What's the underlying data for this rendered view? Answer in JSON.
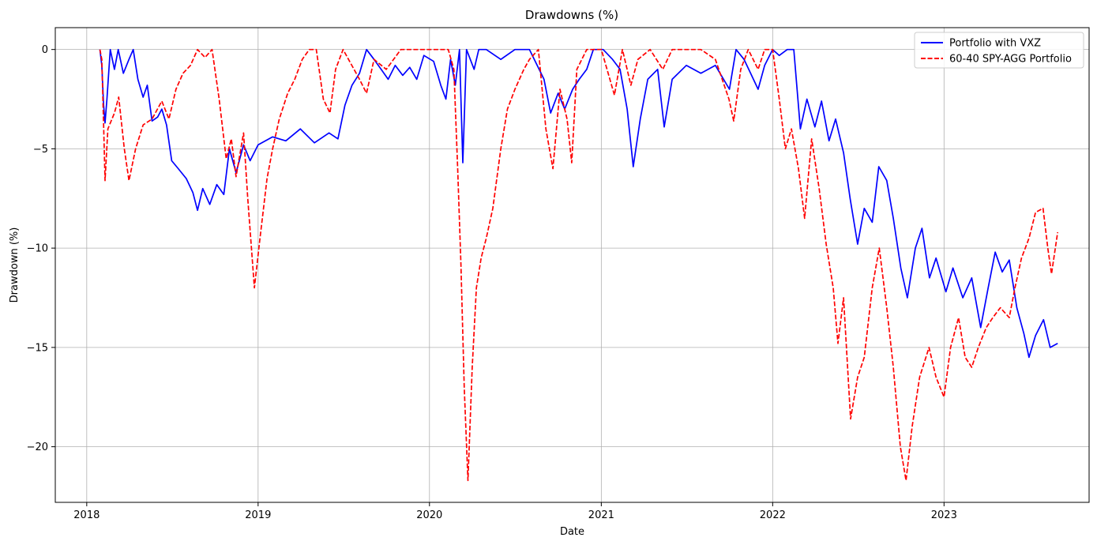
{
  "chart_data": {
    "type": "line",
    "title": "Drawdowns (%)",
    "xlabel": "Date",
    "ylabel": "Drawdown (%)",
    "x_range": [
      "2017-10-26",
      "2023-11-06"
    ],
    "ylim": [
      -22.8,
      1.1
    ],
    "x_ticks": [
      "2018",
      "2019",
      "2020",
      "2021",
      "2022",
      "2023"
    ],
    "y_ticks": [
      0,
      -5,
      -10,
      -15,
      -20
    ],
    "y_tick_labels": [
      "0",
      "−5",
      "−10",
      "−15",
      "−20"
    ],
    "grid": true,
    "legend_position": "top-right",
    "series": [
      {
        "name": "Portfolio with VXZ",
        "color": "#0000ff",
        "style": "solid",
        "points": [
          [
            "2018-01-29",
            0
          ],
          [
            "2018-02-02",
            -0.8
          ],
          [
            "2018-02-06",
            -2.8
          ],
          [
            "2018-02-09",
            -3.7
          ],
          [
            "2018-02-13",
            -2.5
          ],
          [
            "2018-02-20",
            0
          ],
          [
            "2018-03-01",
            -1.0
          ],
          [
            "2018-03-09",
            0
          ],
          [
            "2018-03-20",
            -1.2
          ],
          [
            "2018-04-01",
            -0.5
          ],
          [
            "2018-04-10",
            0
          ],
          [
            "2018-04-20",
            -1.5
          ],
          [
            "2018-05-01",
            -2.4
          ],
          [
            "2018-05-10",
            -1.8
          ],
          [
            "2018-05-20",
            -3.6
          ],
          [
            "2018-06-01",
            -3.4
          ],
          [
            "2018-06-10",
            -3.0
          ],
          [
            "2018-06-20",
            -3.8
          ],
          [
            "2018-07-01",
            -5.6
          ],
          [
            "2018-07-15",
            -6.0
          ],
          [
            "2018-08-01",
            -6.5
          ],
          [
            "2018-08-15",
            -7.2
          ],
          [
            "2018-08-25",
            -8.1
          ],
          [
            "2018-09-05",
            -7.0
          ],
          [
            "2018-09-20",
            -7.8
          ],
          [
            "2018-10-05",
            -6.8
          ],
          [
            "2018-10-20",
            -7.3
          ],
          [
            "2018-11-01",
            -5.0
          ],
          [
            "2018-11-15",
            -6.2
          ],
          [
            "2018-12-01",
            -4.8
          ],
          [
            "2018-12-15",
            -5.6
          ],
          [
            "2019-01-01",
            -4.8
          ],
          [
            "2019-02-01",
            -4.4
          ],
          [
            "2019-03-01",
            -4.6
          ],
          [
            "2019-04-01",
            -4.0
          ],
          [
            "2019-05-01",
            -4.7
          ],
          [
            "2019-06-01",
            -4.2
          ],
          [
            "2019-06-20",
            -4.5
          ],
          [
            "2019-07-05",
            -2.8
          ],
          [
            "2019-07-20",
            -1.8
          ],
          [
            "2019-08-05",
            -1.2
          ],
          [
            "2019-08-20",
            0
          ],
          [
            "2019-09-05",
            -0.5
          ],
          [
            "2019-09-20",
            -1.0
          ],
          [
            "2019-10-05",
            -1.5
          ],
          [
            "2019-10-20",
            -0.8
          ],
          [
            "2019-11-05",
            -1.3
          ],
          [
            "2019-11-20",
            -0.9
          ],
          [
            "2019-12-05",
            -1.5
          ],
          [
            "2019-12-20",
            -0.3
          ],
          [
            "2020-01-10",
            -0.6
          ],
          [
            "2020-01-25",
            -1.8
          ],
          [
            "2020-02-05",
            -2.5
          ],
          [
            "2020-02-15",
            -0.5
          ],
          [
            "2020-02-25",
            -1.8
          ],
          [
            "2020-03-05",
            0
          ],
          [
            "2020-03-12",
            -5.7
          ],
          [
            "2020-03-20",
            0
          ],
          [
            "2020-04-05",
            -1.0
          ],
          [
            "2020-04-15",
            0
          ],
          [
            "2020-05-01",
            0
          ],
          [
            "2020-06-01",
            -0.5
          ],
          [
            "2020-07-01",
            0
          ],
          [
            "2020-08-01",
            0
          ],
          [
            "2020-09-01",
            -1.5
          ],
          [
            "2020-09-15",
            -3.2
          ],
          [
            "2020-10-01",
            -2.2
          ],
          [
            "2020-10-15",
            -3.0
          ],
          [
            "2020-11-01",
            -2.0
          ],
          [
            "2020-11-15",
            -1.5
          ],
          [
            "2020-12-01",
            -1.0
          ],
          [
            "2020-12-15",
            0
          ],
          [
            "2021-01-05",
            0
          ],
          [
            "2021-01-25",
            -0.5
          ],
          [
            "2021-02-10",
            -1.0
          ],
          [
            "2021-02-25",
            -3.0
          ],
          [
            "2021-03-10",
            -5.9
          ],
          [
            "2021-03-25",
            -3.5
          ],
          [
            "2021-04-10",
            -1.5
          ],
          [
            "2021-05-01",
            -1.0
          ],
          [
            "2021-05-15",
            -3.9
          ],
          [
            "2021-06-01",
            -1.5
          ],
          [
            "2021-07-01",
            -0.8
          ],
          [
            "2021-08-01",
            -1.2
          ],
          [
            "2021-09-01",
            -0.8
          ],
          [
            "2021-10-01",
            -2.0
          ],
          [
            "2021-10-15",
            0
          ],
          [
            "2021-11-01",
            -0.5
          ],
          [
            "2021-11-15",
            -1.2
          ],
          [
            "2021-12-01",
            -2.0
          ],
          [
            "2021-12-15",
            -0.8
          ],
          [
            "2022-01-01",
            0
          ],
          [
            "2022-01-15",
            -0.3
          ],
          [
            "2022-02-01",
            0
          ],
          [
            "2022-02-15",
            0
          ],
          [
            "2022-03-01",
            -4.0
          ],
          [
            "2022-03-15",
            -2.5
          ],
          [
            "2022-04-01",
            -3.9
          ],
          [
            "2022-04-15",
            -2.6
          ],
          [
            "2022-05-01",
            -4.6
          ],
          [
            "2022-05-15",
            -3.5
          ],
          [
            "2022-06-01",
            -5.2
          ],
          [
            "2022-06-15",
            -7.5
          ],
          [
            "2022-07-01",
            -9.8
          ],
          [
            "2022-07-15",
            -8.0
          ],
          [
            "2022-08-01",
            -8.7
          ],
          [
            "2022-08-15",
            -5.9
          ],
          [
            "2022-09-01",
            -6.6
          ],
          [
            "2022-09-15",
            -8.5
          ],
          [
            "2022-10-01",
            -11.0
          ],
          [
            "2022-10-15",
            -12.5
          ],
          [
            "2022-11-01",
            -10.0
          ],
          [
            "2022-11-15",
            -9.0
          ],
          [
            "2022-12-01",
            -11.5
          ],
          [
            "2022-12-15",
            -10.5
          ],
          [
            "2023-01-05",
            -12.2
          ],
          [
            "2023-01-20",
            -11.0
          ],
          [
            "2023-02-10",
            -12.5
          ],
          [
            "2023-03-01",
            -11.5
          ],
          [
            "2023-03-20",
            -14.0
          ],
          [
            "2023-04-05",
            -12.0
          ],
          [
            "2023-04-20",
            -10.2
          ],
          [
            "2023-05-05",
            -11.2
          ],
          [
            "2023-05-20",
            -10.6
          ],
          [
            "2023-06-05",
            -13.0
          ],
          [
            "2023-06-20",
            -14.3
          ],
          [
            "2023-07-01",
            -15.5
          ],
          [
            "2023-07-15",
            -14.4
          ],
          [
            "2023-08-01",
            -13.6
          ],
          [
            "2023-08-15",
            -15.0
          ],
          [
            "2023-08-31",
            -14.8
          ]
        ]
      },
      {
        "name": "60-40 SPY-AGG Portfolio",
        "color": "#ff0000",
        "style": "dashed",
        "points": [
          [
            "2018-01-29",
            0
          ],
          [
            "2018-02-02",
            -0.5
          ],
          [
            "2018-02-06",
            -3.8
          ],
          [
            "2018-02-09",
            -6.6
          ],
          [
            "2018-02-15",
            -4.0
          ],
          [
            "2018-03-01",
            -3.2
          ],
          [
            "2018-03-10",
            -2.4
          ],
          [
            "2018-03-22",
            -5.0
          ],
          [
            "2018-04-01",
            -6.6
          ],
          [
            "2018-04-15",
            -5.0
          ],
          [
            "2018-05-01",
            -3.8
          ],
          [
            "2018-05-20",
            -3.5
          ],
          [
            "2018-06-10",
            -2.6
          ],
          [
            "2018-06-25",
            -3.5
          ],
          [
            "2018-07-10",
            -2.0
          ],
          [
            "2018-07-25",
            -1.2
          ],
          [
            "2018-08-10",
            -0.8
          ],
          [
            "2018-08-25",
            0
          ],
          [
            "2018-09-10",
            -0.4
          ],
          [
            "2018-09-25",
            0
          ],
          [
            "2018-10-10",
            -2.5
          ],
          [
            "2018-10-25",
            -5.5
          ],
          [
            "2018-11-05",
            -4.5
          ],
          [
            "2018-11-15",
            -6.4
          ],
          [
            "2018-12-01",
            -4.2
          ],
          [
            "2018-12-10",
            -7.5
          ],
          [
            "2018-12-24",
            -12.0
          ],
          [
            "2019-01-05",
            -9.5
          ],
          [
            "2019-01-20",
            -6.5
          ],
          [
            "2019-02-01",
            -5.0
          ],
          [
            "2019-02-15",
            -3.5
          ],
          [
            "2019-03-05",
            -2.2
          ],
          [
            "2019-03-20",
            -1.5
          ],
          [
            "2019-04-05",
            -0.5
          ],
          [
            "2019-04-20",
            0
          ],
          [
            "2019-05-05",
            0
          ],
          [
            "2019-05-20",
            -2.5
          ],
          [
            "2019-06-03",
            -3.2
          ],
          [
            "2019-06-15",
            -1.0
          ],
          [
            "2019-07-01",
            0
          ],
          [
            "2019-08-05",
            -1.5
          ],
          [
            "2019-08-20",
            -2.2
          ],
          [
            "2019-09-05",
            -0.5
          ],
          [
            "2019-10-01",
            -1.0
          ],
          [
            "2019-11-01",
            0
          ],
          [
            "2019-12-01",
            0
          ],
          [
            "2020-01-05",
            0
          ],
          [
            "2020-01-20",
            0
          ],
          [
            "2020-02-10",
            0
          ],
          [
            "2020-02-22",
            -1.0
          ],
          [
            "2020-03-01",
            -6.0
          ],
          [
            "2020-03-08",
            -10.8
          ],
          [
            "2020-03-15",
            -17.0
          ],
          [
            "2020-03-23",
            -21.7
          ],
          [
            "2020-04-01",
            -16.0
          ],
          [
            "2020-04-10",
            -12.0
          ],
          [
            "2020-04-20",
            -10.5
          ],
          [
            "2020-05-01",
            -9.5
          ],
          [
            "2020-05-15",
            -8.0
          ],
          [
            "2020-06-01",
            -5.0
          ],
          [
            "2020-06-15",
            -3.0
          ],
          [
            "2020-07-01",
            -2.0
          ],
          [
            "2020-07-20",
            -1.0
          ],
          [
            "2020-08-01",
            -0.5
          ],
          [
            "2020-08-20",
            0
          ],
          [
            "2020-09-05",
            -4.0
          ],
          [
            "2020-09-20",
            -6.0
          ],
          [
            "2020-10-05",
            -2.0
          ],
          [
            "2020-10-20",
            -3.5
          ],
          [
            "2020-10-30",
            -5.7
          ],
          [
            "2020-11-10",
            -1.0
          ],
          [
            "2020-12-01",
            0
          ],
          [
            "2021-01-01",
            0
          ],
          [
            "2021-01-29",
            -2.3
          ],
          [
            "2021-02-15",
            0
          ],
          [
            "2021-03-05",
            -1.8
          ],
          [
            "2021-03-20",
            -0.5
          ],
          [
            "2021-04-15",
            0
          ],
          [
            "2021-05-12",
            -1.0
          ],
          [
            "2021-06-01",
            0
          ],
          [
            "2021-07-01",
            0
          ],
          [
            "2021-08-01",
            0
          ],
          [
            "2021-09-01",
            -0.5
          ],
          [
            "2021-09-30",
            -2.5
          ],
          [
            "2021-10-10",
            -3.6
          ],
          [
            "2021-10-25",
            -1.0
          ],
          [
            "2021-11-10",
            0
          ],
          [
            "2021-12-01",
            -1.0
          ],
          [
            "2021-12-15",
            0
          ],
          [
            "2022-01-01",
            0
          ],
          [
            "2022-01-15",
            -2.5
          ],
          [
            "2022-01-28",
            -5.0
          ],
          [
            "2022-02-10",
            -4.0
          ],
          [
            "2022-02-25",
            -6.0
          ],
          [
            "2022-03-10",
            -8.5
          ],
          [
            "2022-03-25",
            -4.5
          ],
          [
            "2022-04-10",
            -7.0
          ],
          [
            "2022-04-25",
            -9.8
          ],
          [
            "2022-05-10",
            -12.0
          ],
          [
            "2022-05-20",
            -14.8
          ],
          [
            "2022-06-01",
            -12.5
          ],
          [
            "2022-06-16",
            -18.6
          ],
          [
            "2022-07-01",
            -16.5
          ],
          [
            "2022-07-15",
            -15.5
          ],
          [
            "2022-08-01",
            -12.0
          ],
          [
            "2022-08-16",
            -10.0
          ],
          [
            "2022-09-01",
            -13.0
          ],
          [
            "2022-09-15",
            -16.0
          ],
          [
            "2022-09-30",
            -20.0
          ],
          [
            "2022-10-12",
            -21.7
          ],
          [
            "2022-10-25",
            -19.0
          ],
          [
            "2022-11-10",
            -16.5
          ],
          [
            "2022-11-30",
            -15.0
          ],
          [
            "2022-12-15",
            -16.5
          ],
          [
            "2023-01-01",
            -17.5
          ],
          [
            "2023-01-15",
            -15.0
          ],
          [
            "2023-02-01",
            -13.5
          ],
          [
            "2023-02-15",
            -15.5
          ],
          [
            "2023-03-01",
            -16.0
          ],
          [
            "2023-03-15",
            -15.0
          ],
          [
            "2023-04-01",
            -14.0
          ],
          [
            "2023-04-15",
            -13.5
          ],
          [
            "2023-05-01",
            -13.0
          ],
          [
            "2023-05-20",
            -13.5
          ],
          [
            "2023-06-01",
            -12.0
          ],
          [
            "2023-06-15",
            -10.5
          ],
          [
            "2023-07-01",
            -9.5
          ],
          [
            "2023-07-15",
            -8.2
          ],
          [
            "2023-07-31",
            -8.0
          ],
          [
            "2023-08-10",
            -10.0
          ],
          [
            "2023-08-18",
            -11.3
          ],
          [
            "2023-08-31",
            -9.2
          ]
        ]
      }
    ]
  }
}
